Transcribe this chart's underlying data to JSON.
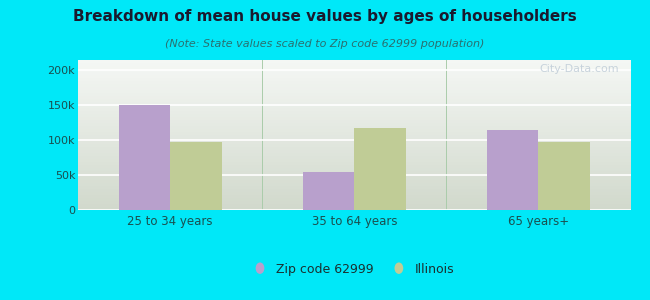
{
  "title": "Breakdown of mean house values by ages of householders",
  "subtitle": "(Note: State values scaled to Zip code 62999 population)",
  "categories": [
    "25 to 34 years",
    "35 to 64 years",
    "65 years+"
  ],
  "zip_values": [
    150000,
    54000,
    115000
  ],
  "il_values": [
    98000,
    117000,
    98000
  ],
  "zip_color": "#b8a0cc",
  "il_color": "#c0cc96",
  "background_outer": "#00e8f8",
  "background_inner_bottom": "#d8f0d0",
  "background_inner_top": "#f0faf0",
  "title_color": "#1a1a2e",
  "subtitle_color": "#2a7070",
  "yticks": [
    0,
    50000,
    100000,
    150000,
    200000
  ],
  "ytick_labels": [
    "0",
    "50k",
    "100k",
    "150k",
    "200k"
  ],
  "ylim": [
    0,
    215000
  ],
  "legend_zip_label": "Zip code 62999",
  "legend_il_label": "Illinois",
  "bar_width": 0.28,
  "watermark": "City-Data.com"
}
